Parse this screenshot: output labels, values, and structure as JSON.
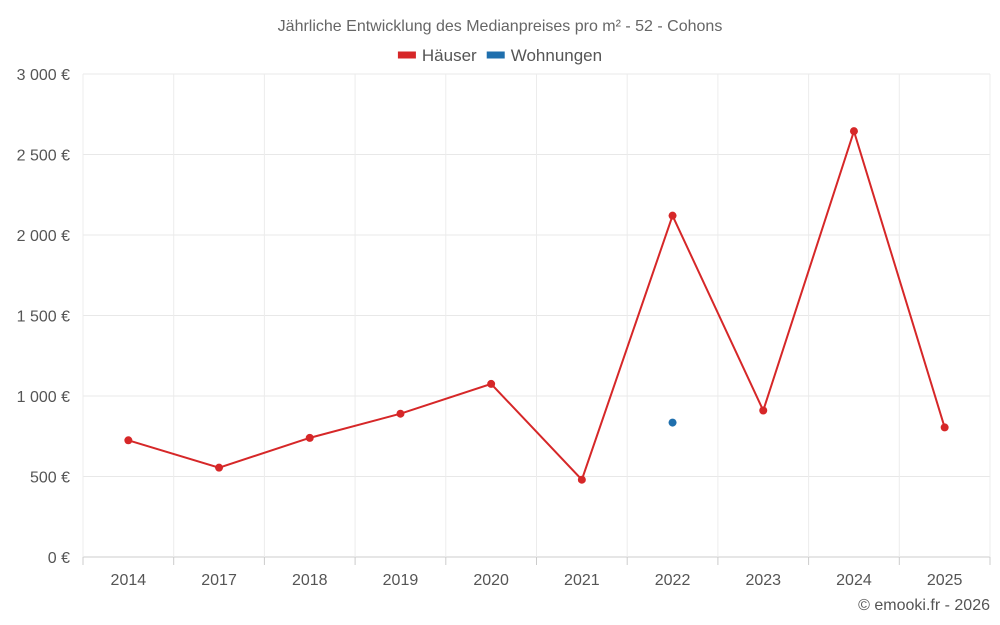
{
  "chart_data": {
    "type": "line",
    "title": "Jährliche Entwicklung des Medianpreises pro m² - 52 - Cohons",
    "categories": [
      "2014",
      "2017",
      "2018",
      "2019",
      "2020",
      "2021",
      "2022",
      "2023",
      "2024",
      "2025"
    ],
    "ylim": [
      0,
      3000
    ],
    "y_ticks": [
      0,
      500,
      1000,
      1500,
      2000,
      2500,
      3000
    ],
    "y_tick_labels": [
      "0 €",
      "500 €",
      "1 000 €",
      "1 500 €",
      "2 000 €",
      "2 500 €",
      "3 000 €"
    ],
    "grid": true,
    "legend_position": "top-center",
    "series": [
      {
        "name": "Häuser",
        "color": "#d62728",
        "values": [
          725,
          555,
          740,
          890,
          1075,
          480,
          2120,
          910,
          2645,
          805
        ]
      },
      {
        "name": "Wohnungen",
        "color": "#1f6fad",
        "values": [
          null,
          null,
          null,
          null,
          null,
          null,
          835,
          null,
          null,
          null
        ]
      }
    ]
  },
  "credit": "© emooki.fr - 2026"
}
